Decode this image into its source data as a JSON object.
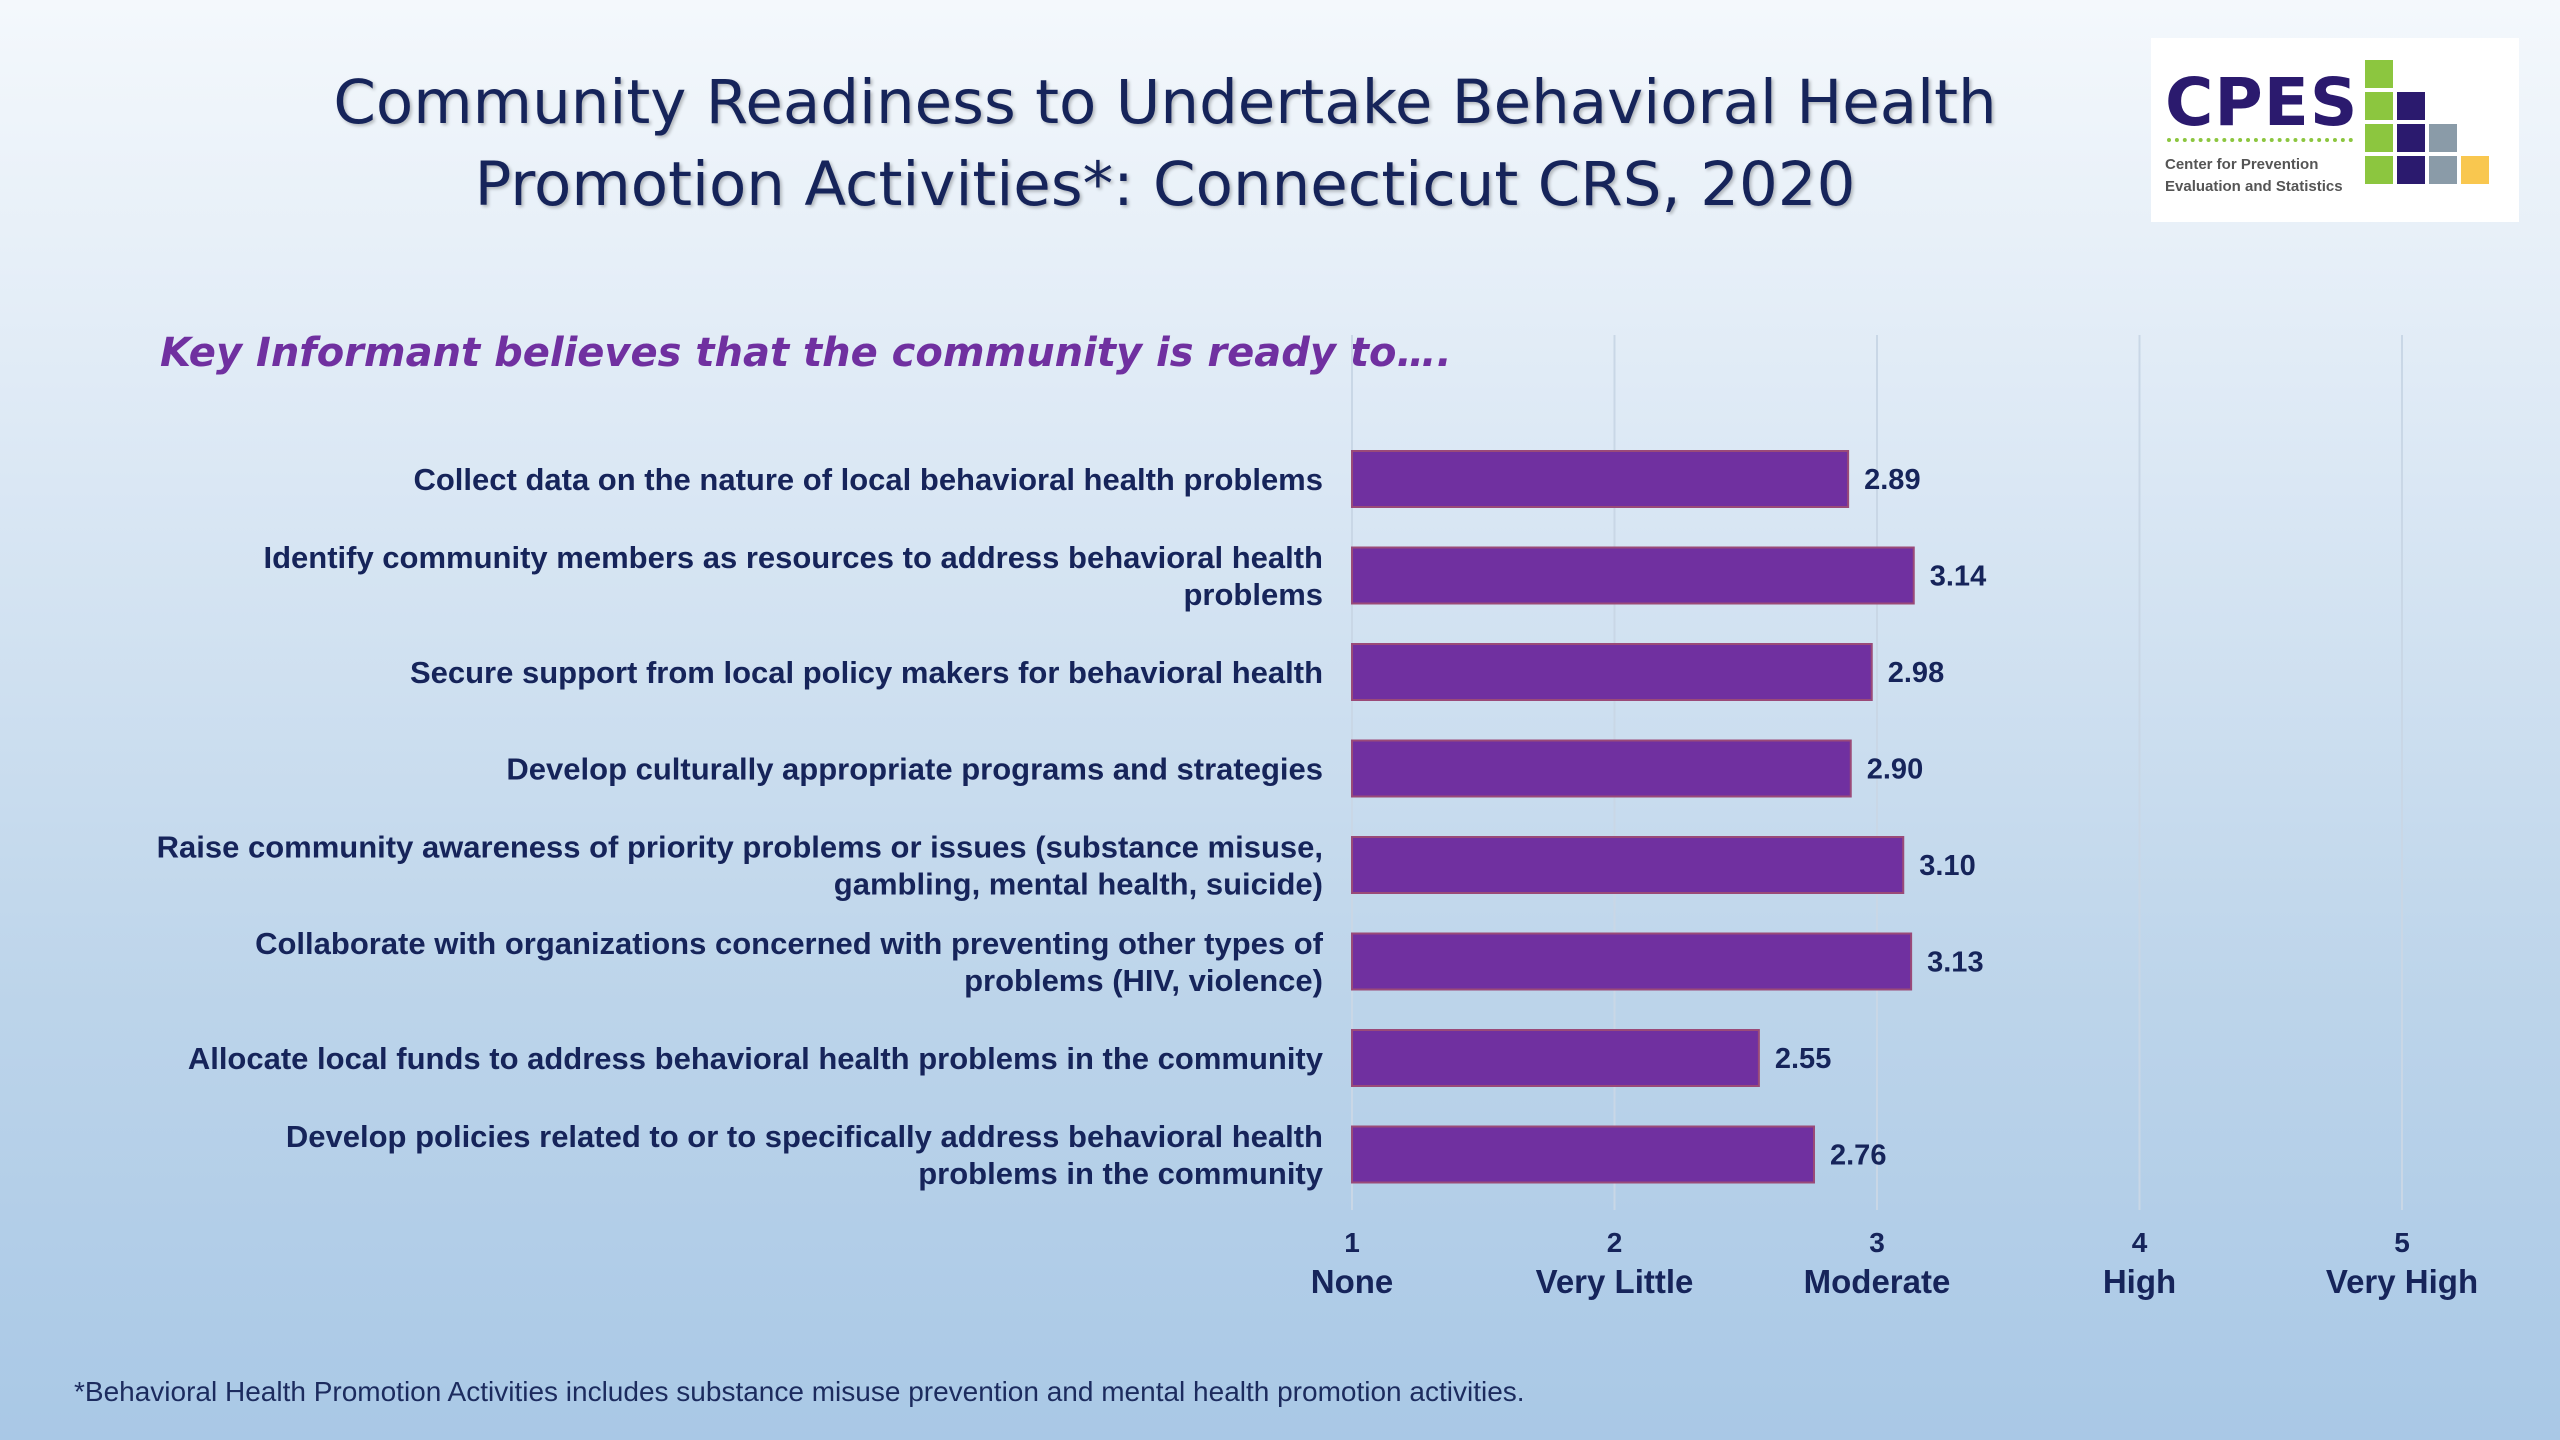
{
  "title_line1": "Community Readiness to Undertake Behavioral Health",
  "title_line2": "Promotion Activities*: Connecticut CRS, 2020",
  "logo": {
    "name": "CPES",
    "sub_line1": "Center for Prevention",
    "sub_line2": "Evaluation and Statistics",
    "colors": {
      "green": "#8cc63f",
      "navy": "#2b1a6e",
      "gray": "#8a9ba8",
      "yellow": "#f9c74f"
    }
  },
  "subtitle": "Key Informant believes that the community is ready to….",
  "footnote": "*Behavioral Health Promotion Activities includes substance misuse prevention and mental health promotion activities.",
  "chart_data": {
    "type": "bar",
    "orientation": "horizontal",
    "categories": [
      [
        "Collect data on the nature of local behavioral health problems"
      ],
      [
        "Identify community members as resources to address behavioral health",
        "problems"
      ],
      [
        "Secure support from local policy makers for behavioral health"
      ],
      [
        "Develop culturally appropriate programs and strategies"
      ],
      [
        "Raise community awareness of priority problems or issues (substance misuse,",
        "gambling, mental health, suicide)"
      ],
      [
        "Collaborate with organizations concerned with preventing other types of",
        "problems (HIV, violence)"
      ],
      [
        "Allocate local funds to address behavioral health problems in the community"
      ],
      [
        "Develop policies related to or to specifically address behavioral health",
        "problems in the community"
      ]
    ],
    "values": [
      2.89,
      3.14,
      2.98,
      2.9,
      3.1,
      3.13,
      2.55,
      2.76
    ],
    "value_labels": [
      "2.89",
      "3.14",
      "2.98",
      "2.90",
      "3.10",
      "3.13",
      "2.55",
      "2.76"
    ],
    "xlim": [
      1,
      5
    ],
    "ticks": [
      {
        "value": 1,
        "number": "1",
        "label": "None"
      },
      {
        "value": 2,
        "number": "2",
        "label": "Very Little"
      },
      {
        "value": 3,
        "number": "3",
        "label": "Moderate"
      },
      {
        "value": 4,
        "number": "4",
        "label": "High"
      },
      {
        "value": 5,
        "number": "5",
        "label": "Very High"
      }
    ],
    "grid": true,
    "bar_color": "#7030a0",
    "label_color": "#16245a"
  }
}
